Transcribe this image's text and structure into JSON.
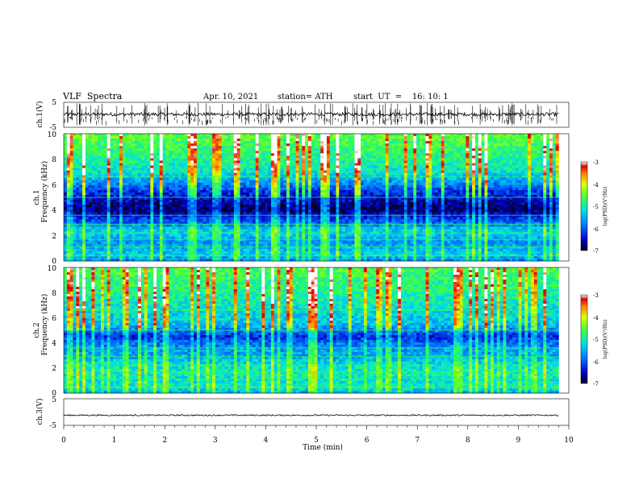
{
  "header": {
    "title": "VLF  Spectra",
    "date": "Apr. 10, 2021",
    "station": "station= ATH",
    "start": "start  UT  =    16: 10: 1"
  },
  "chart_data": [
    {
      "type": "line",
      "panel": "ch1-waveform",
      "ylabel": "ch.1(V)",
      "ylim": [
        -5,
        5
      ],
      "yticks": [
        "5",
        "-5"
      ],
      "xlim": [
        0,
        10
      ],
      "x_data_end": 9.8,
      "baseline": 0.2,
      "spikes_per_min": 30,
      "color": "#000000"
    },
    {
      "type": "heatmap",
      "panel": "ch1-spectrogram",
      "ylabel": "Frequency  (kHz)",
      "chlabel": "ch.1",
      "ylim": [
        0,
        10
      ],
      "yticks": [
        "10",
        "8",
        "6",
        "4",
        "2",
        "0"
      ],
      "xlim": [
        0,
        10
      ],
      "x_data_end": 9.8,
      "zlim": [
        -7,
        -3
      ],
      "zlabel": "log(PSD)(V²/Hz)",
      "zticks": [
        "-3",
        "-4",
        "-5",
        "-6",
        "-7"
      ],
      "profile_khz": [
        0,
        0.5,
        1,
        1.5,
        2,
        2.5,
        3,
        3.5,
        4,
        4.5,
        5,
        5.5,
        6,
        6.5,
        7,
        7.5,
        8,
        8.5,
        9,
        9.5,
        10
      ],
      "profile_log_psd": [
        -5.8,
        -5.3,
        -5.5,
        -5.7,
        -5.4,
        -5.3,
        -6.0,
        -6.3,
        -6.8,
        -6.7,
        -6.4,
        -6.2,
        -5.8,
        -5.5,
        -5.1,
        -5.0,
        -4.9,
        -4.8,
        -4.7,
        -4.6,
        -4.5
      ]
    },
    {
      "type": "heatmap",
      "panel": "ch2-spectrogram",
      "ylabel": "Frequency  (kHz)",
      "chlabel": "ch.2",
      "ylim": [
        0,
        10
      ],
      "yticks": [
        "10",
        "8",
        "6",
        "4",
        "2",
        "0"
      ],
      "xlim": [
        0,
        10
      ],
      "x_data_end": 9.8,
      "zlim": [
        -7,
        -3
      ],
      "zlabel": "log(PSD)(V²/Hz)",
      "zticks": [
        "-3",
        "-4",
        "-5",
        "-6",
        "-7"
      ],
      "profile_khz": [
        0,
        0.5,
        1,
        1.5,
        2,
        2.5,
        3,
        3.5,
        4,
        4.5,
        5,
        5.5,
        6,
        6.5,
        7,
        7.5,
        8,
        8.5,
        9,
        9.5,
        10
      ],
      "profile_log_psd": [
        -5.6,
        -5.0,
        -5.2,
        -5.0,
        -5.1,
        -5.3,
        -5.6,
        -5.6,
        -5.9,
        -6.3,
        -5.8,
        -5.4,
        -5.3,
        -5.2,
        -5.1,
        -5.0,
        -4.9,
        -4.8,
        -4.8,
        -4.7,
        -4.6
      ]
    },
    {
      "type": "line",
      "panel": "ch3-waveform",
      "ylabel": "ch.3(V)",
      "ylim": [
        -5,
        5
      ],
      "yticks": [
        "5",
        "-5"
      ],
      "xlim": [
        0,
        10
      ],
      "x_data_end": 9.8,
      "baseline": -1.2,
      "xlabel": "Time  (min)",
      "xticks": [
        "0",
        "1",
        "2",
        "3",
        "4",
        "5",
        "6",
        "7",
        "8",
        "9",
        "10"
      ],
      "color": "#000000"
    }
  ]
}
